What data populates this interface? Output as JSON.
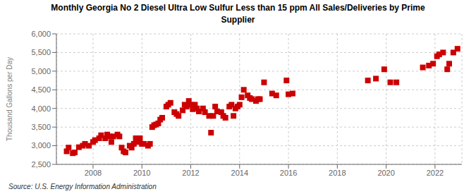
{
  "chart_data": {
    "type": "scatter",
    "title": "Monthly Georgia No 2 Diesel Ultra Low Sulfur Less than 15 ppm All Sales/Deliveries by Prime\nSupplier",
    "ylabel": "Thousand Gallons per Day",
    "annotations": [
      "Source: U.S. Energy Information Administration"
    ],
    "color": "#cc0000",
    "marker": "square",
    "grid": true,
    "xlim": [
      2006.5,
      2023.1
    ],
    "xticks": [
      2008,
      2010,
      2012,
      2014,
      2016,
      2018,
      2020,
      2022
    ],
    "ylim": [
      2500,
      6000
    ],
    "yticks": [
      {
        "value": 2500,
        "label": "2,500"
      },
      {
        "value": 3000,
        "label": "3,000"
      },
      {
        "value": 3500,
        "label": "3,500"
      },
      {
        "value": 4000,
        "label": "4,000"
      },
      {
        "value": 4500,
        "label": "4,500"
      },
      {
        "value": 5000,
        "label": "5,000"
      },
      {
        "value": 5500,
        "label": "5,500"
      },
      {
        "value": 6000,
        "label": "6,000"
      }
    ],
    "x": [
      2006.92,
      2007.0,
      2007.17,
      2007.25,
      2007.42,
      2007.58,
      2007.67,
      2007.83,
      2008.0,
      2008.08,
      2008.25,
      2008.33,
      2008.5,
      2008.58,
      2008.67,
      2008.75,
      2008.83,
      2009.0,
      2009.08,
      2009.17,
      2009.25,
      2009.33,
      2009.5,
      2009.58,
      2009.67,
      2009.75,
      2009.83,
      2009.92,
      2010.0,
      2010.08,
      2010.25,
      2010.33,
      2010.42,
      2010.5,
      2010.58,
      2010.67,
      2010.75,
      2010.83,
      2011.0,
      2011.08,
      2011.17,
      2011.33,
      2011.42,
      2011.5,
      2011.67,
      2011.75,
      2011.83,
      2011.92,
      2012.0,
      2012.08,
      2012.17,
      2012.25,
      2012.33,
      2012.5,
      2012.58,
      2012.75,
      2012.83,
      2012.92,
      2013.0,
      2013.08,
      2013.25,
      2013.33,
      2013.42,
      2013.58,
      2013.67,
      2013.75,
      2013.83,
      2013.92,
      2014.0,
      2014.08,
      2014.17,
      2014.33,
      2014.42,
      2014.5,
      2014.67,
      2014.75,
      2014.83,
      2015.0,
      2015.33,
      2015.5,
      2015.92,
      2016.0,
      2016.17,
      2019.25,
      2019.58,
      2019.92,
      2020.17,
      2020.42,
      2021.5,
      2021.75,
      2021.92,
      2022.08,
      2022.17,
      2022.33,
      2022.5,
      2022.58,
      2022.75,
      2022.92
    ],
    "values": [
      2850,
      2950,
      2800,
      2820,
      2960,
      3000,
      3050,
      3000,
      3100,
      3150,
      3200,
      3280,
      3200,
      3300,
      3250,
      3100,
      3250,
      3300,
      3250,
      2950,
      2850,
      2820,
      3000,
      2950,
      3050,
      3200,
      3100,
      3200,
      3050,
      3050,
      3000,
      3050,
      3500,
      3550,
      3570,
      3600,
      3700,
      3750,
      4050,
      4100,
      4150,
      3900,
      3850,
      3800,
      3950,
      4100,
      4050,
      4200,
      4100,
      3980,
      4100,
      4000,
      3920,
      4000,
      3900,
      3800,
      3350,
      3800,
      4050,
      3920,
      3900,
      3800,
      3750,
      4050,
      4100,
      3800,
      4000,
      4050,
      4100,
      4300,
      4500,
      4350,
      4280,
      4250,
      4200,
      4250,
      4250,
      4700,
      4400,
      4350,
      4750,
      4380,
      4400,
      4750,
      4800,
      5050,
      4700,
      4700,
      5100,
      5150,
      5200,
      5400,
      5450,
      5500,
      5050,
      5200,
      5500,
      5600
    ]
  }
}
